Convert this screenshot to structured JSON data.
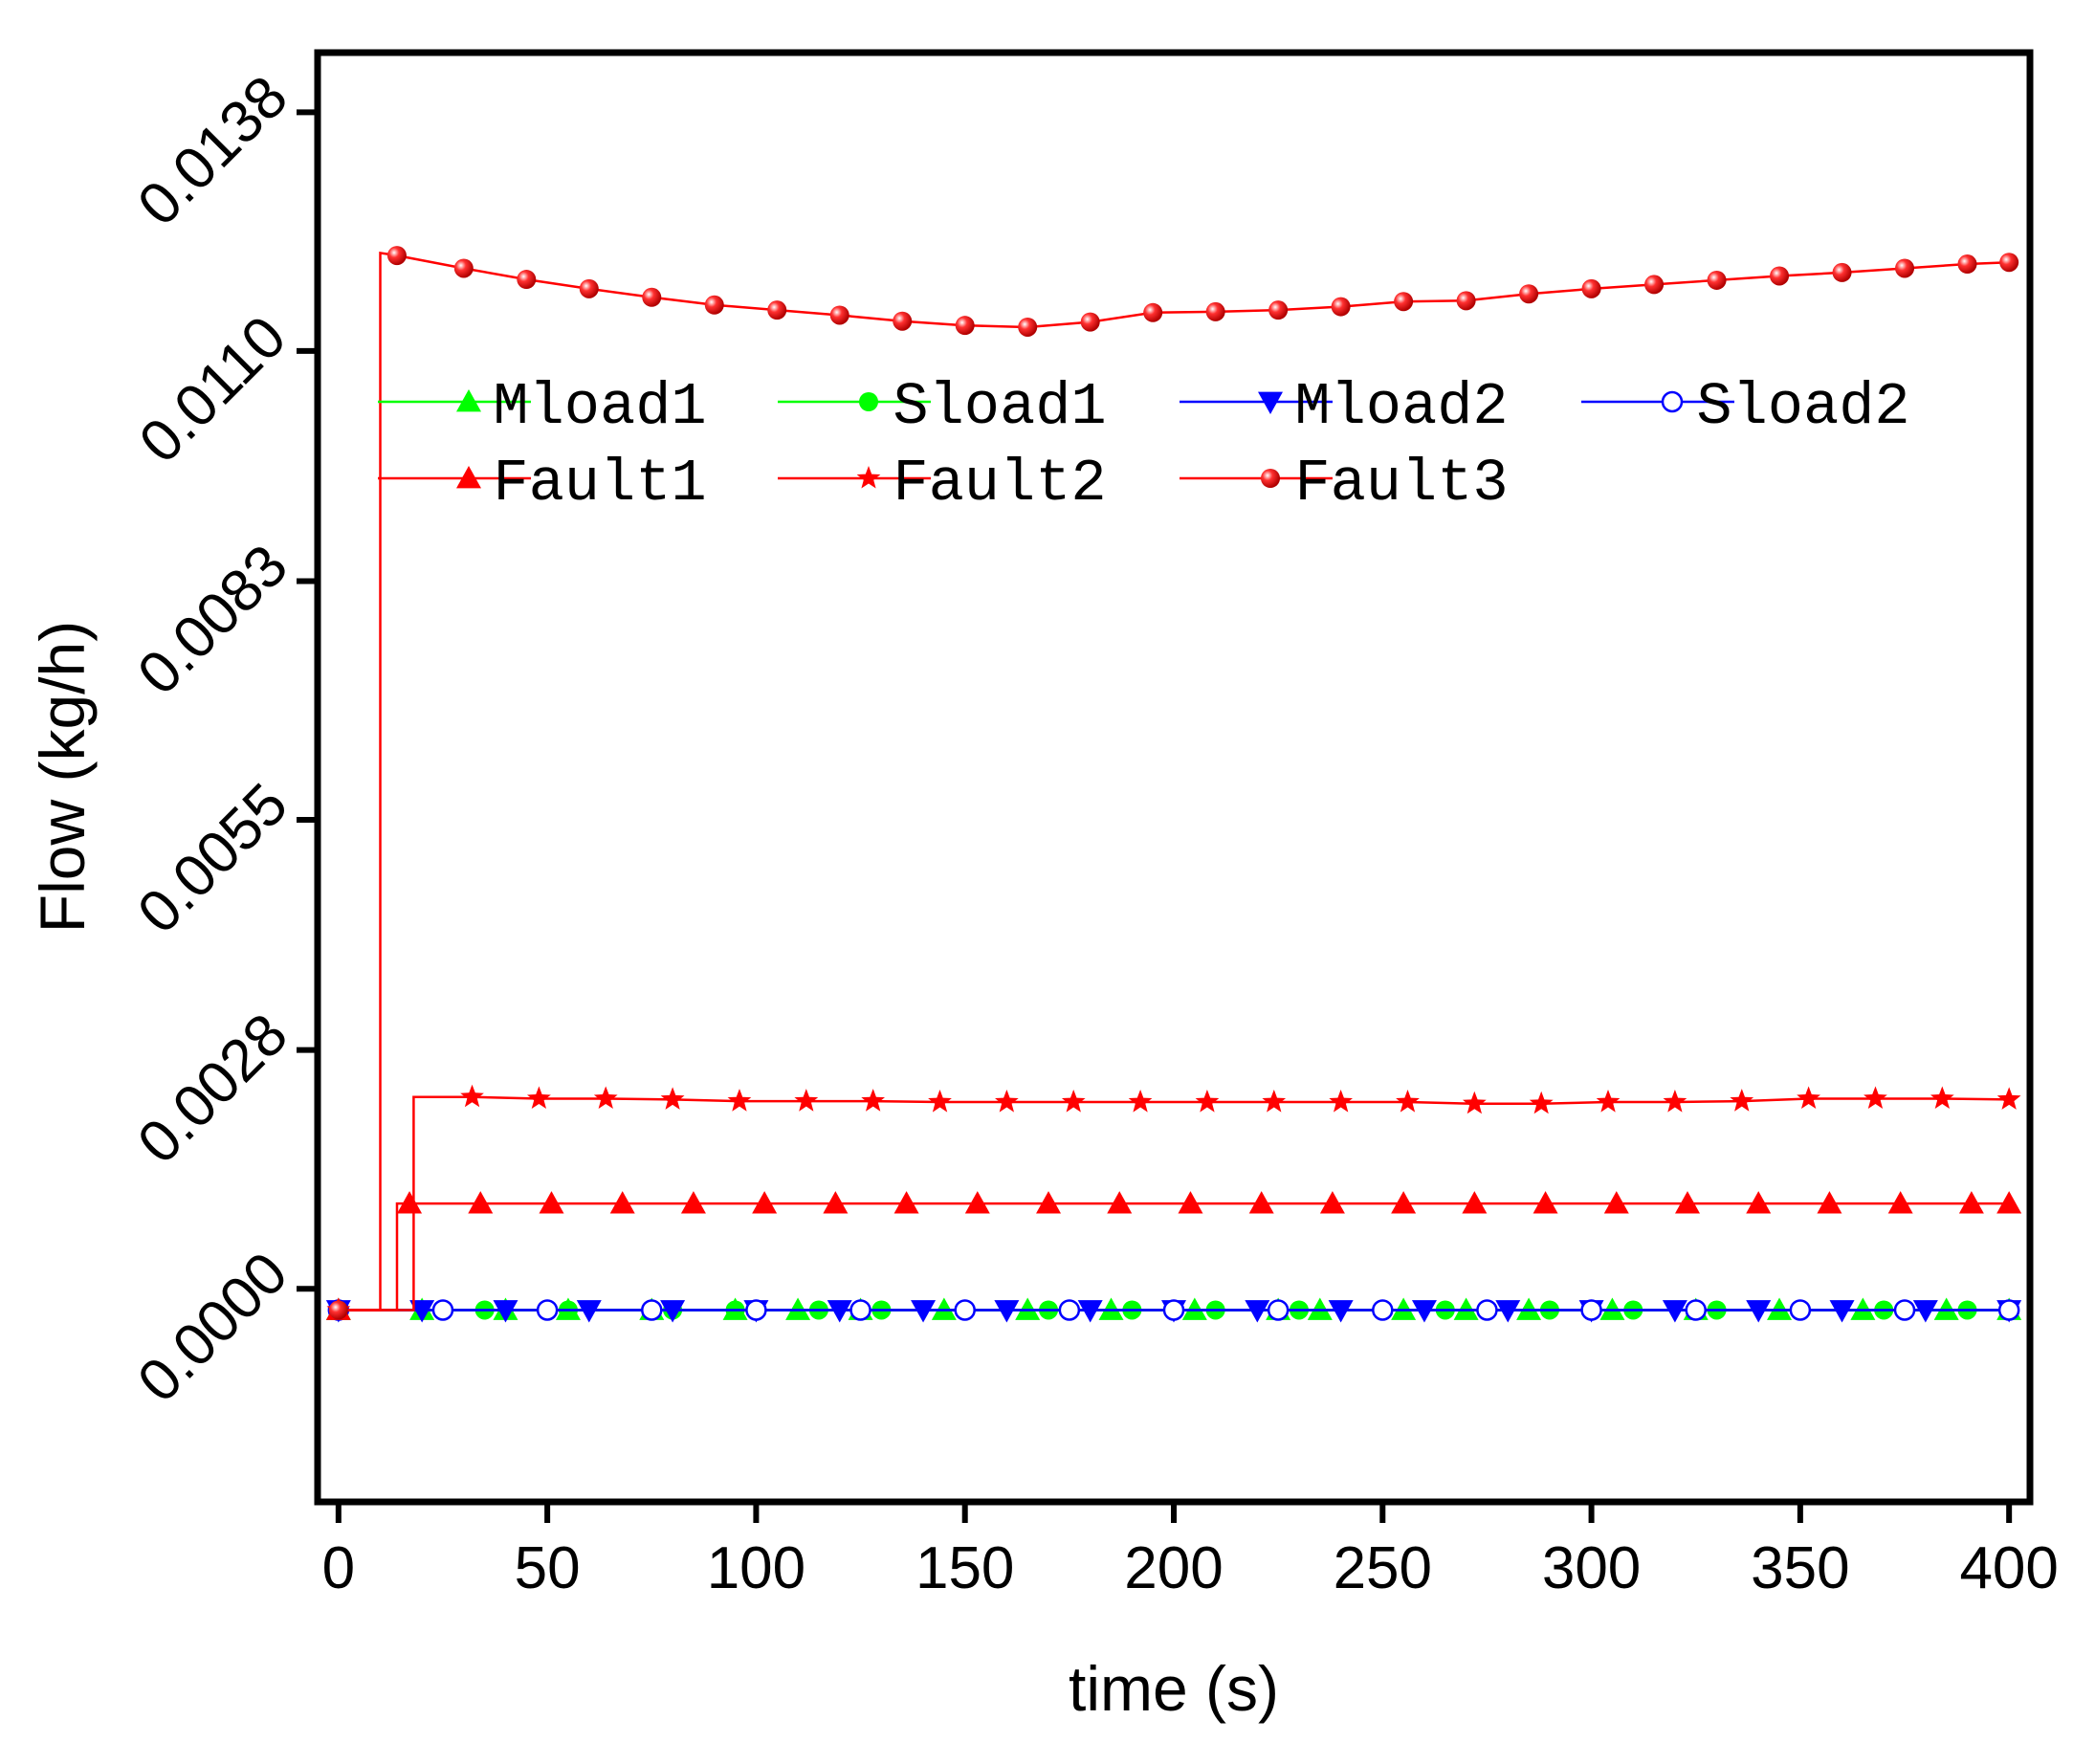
{
  "chart_data": {
    "type": "line",
    "title": "",
    "xlabel": "time (s)",
    "ylabel": "Flow (kg/h)",
    "xlim": [
      -5,
      405
    ],
    "ylim": [
      -0.0025,
      0.0145
    ],
    "x_ticks": [
      0,
      50,
      100,
      150,
      200,
      250,
      300,
      350,
      400
    ],
    "x_tick_labels": [
      "0",
      "50",
      "100",
      "150",
      "200",
      "250",
      "300",
      "350",
      "400"
    ],
    "y_ticks": [
      0.0,
      0.0028,
      0.0055,
      0.0083,
      0.011,
      0.0138
    ],
    "y_tick_labels": [
      "0.0000",
      "0.0028",
      "0.0055",
      "0.0083",
      "0.0110",
      "0.0138"
    ],
    "legend_position": "upper-center",
    "series": [
      {
        "name": "Mload1",
        "color": "#00ff00",
        "marker": "triangle-up",
        "x": [
          0,
          20,
          40,
          55,
          75,
          95,
          110,
          125,
          145,
          165,
          185,
          205,
          225,
          235,
          255,
          270,
          285,
          305,
          325,
          345,
          365,
          385,
          400
        ],
        "y": [
          -0.00025,
          -0.00025,
          -0.00025,
          -0.00025,
          -0.00025,
          -0.00025,
          -0.00025,
          -0.00025,
          -0.00025,
          -0.00025,
          -0.00025,
          -0.00025,
          -0.00025,
          -0.00025,
          -0.00025,
          -0.00025,
          -0.00025,
          -0.00025,
          -0.00025,
          -0.00025,
          -0.00025,
          -0.00025,
          -0.00025
        ]
      },
      {
        "name": "Sload1",
        "color": "#00ff00",
        "marker": "circle",
        "x": [
          0,
          35,
          55,
          80,
          95,
          115,
          130,
          150,
          170,
          190,
          210,
          230,
          250,
          265,
          290,
          310,
          330,
          350,
          370,
          390,
          400
        ],
        "y": [
          -0.00025,
          -0.00025,
          -0.00025,
          -0.00025,
          -0.00025,
          -0.00025,
          -0.00025,
          -0.00025,
          -0.00025,
          -0.00025,
          -0.00025,
          -0.00025,
          -0.00025,
          -0.00025,
          -0.00025,
          -0.00025,
          -0.00025,
          -0.00025,
          -0.00025,
          -0.00025,
          -0.00025
        ]
      },
      {
        "name": "Mload2",
        "color": "#0000ff",
        "marker": "triangle-down",
        "x": [
          0,
          20,
          40,
          60,
          80,
          100,
          120,
          140,
          160,
          180,
          200,
          220,
          240,
          260,
          280,
          300,
          320,
          340,
          360,
          380,
          400
        ],
        "y": [
          -0.00025,
          -0.00025,
          -0.00025,
          -0.00025,
          -0.00025,
          -0.00025,
          -0.00025,
          -0.00025,
          -0.00025,
          -0.00025,
          -0.00025,
          -0.00025,
          -0.00025,
          -0.00025,
          -0.00025,
          -0.00025,
          -0.00025,
          -0.00025,
          -0.00025,
          -0.00025,
          -0.00025
        ]
      },
      {
        "name": "Sload2",
        "color": "#0000ff",
        "marker": "open-circle",
        "x": [
          0,
          25,
          50,
          75,
          100,
          125,
          150,
          175,
          200,
          225,
          250,
          275,
          300,
          325,
          350,
          375,
          400
        ],
        "y": [
          -0.00025,
          -0.00025,
          -0.00025,
          -0.00025,
          -0.00025,
          -0.00025,
          -0.00025,
          -0.00025,
          -0.00025,
          -0.00025,
          -0.00025,
          -0.00025,
          -0.00025,
          -0.00025,
          -0.00025,
          -0.00025,
          -0.00025
        ]
      },
      {
        "name": "Fault1",
        "color": "#ff0000",
        "marker": "triangle-up",
        "x": [
          0,
          14,
          14,
          17,
          34,
          51,
          68,
          85,
          102,
          119,
          136,
          153,
          170,
          187,
          204,
          221,
          238,
          255,
          272,
          289,
          306,
          323,
          340,
          357,
          374,
          391,
          400
        ],
        "y": [
          -0.00025,
          -0.00025,
          0.001,
          0.001,
          0.001,
          0.001,
          0.001,
          0.001,
          0.001,
          0.001,
          0.001,
          0.001,
          0.001,
          0.001,
          0.001,
          0.001,
          0.001,
          0.001,
          0.001,
          0.001,
          0.001,
          0.001,
          0.001,
          0.001,
          0.001,
          0.001,
          0.001
        ]
      },
      {
        "name": "Fault2",
        "color": "#ff0000",
        "marker": "star",
        "x": [
          0,
          18,
          18,
          32,
          48,
          64,
          80,
          96,
          112,
          128,
          144,
          160,
          176,
          192,
          208,
          224,
          240,
          256,
          272,
          288,
          304,
          320,
          336,
          352,
          368,
          384,
          400
        ],
        "y": [
          -0.00025,
          -0.00025,
          0.00225,
          0.00225,
          0.00223,
          0.00223,
          0.00222,
          0.0022,
          0.0022,
          0.0022,
          0.00219,
          0.00219,
          0.00219,
          0.00219,
          0.00219,
          0.00219,
          0.00219,
          0.00219,
          0.00217,
          0.00217,
          0.00219,
          0.00219,
          0.0022,
          0.00223,
          0.00223,
          0.00223,
          0.00222
        ]
      },
      {
        "name": "Fault3",
        "color": "#ff0000",
        "marker": "sphere",
        "x": [
          0,
          10,
          10,
          14,
          30,
          45,
          60,
          75,
          90,
          105,
          120,
          135,
          150,
          165,
          180,
          195,
          210,
          225,
          240,
          255,
          270,
          285,
          300,
          315,
          330,
          345,
          360,
          375,
          390,
          400
        ],
        "y": [
          -0.00025,
          -0.00025,
          0.01215,
          0.01212,
          0.01197,
          0.01184,
          0.01173,
          0.01163,
          0.01154,
          0.01148,
          0.01142,
          0.01135,
          0.0113,
          0.01128,
          0.01134,
          0.01145,
          0.01146,
          0.01148,
          0.01152,
          0.01158,
          0.01159,
          0.01167,
          0.01173,
          0.01178,
          0.01183,
          0.01188,
          0.01192,
          0.01197,
          0.01202,
          0.01204
        ]
      }
    ]
  }
}
